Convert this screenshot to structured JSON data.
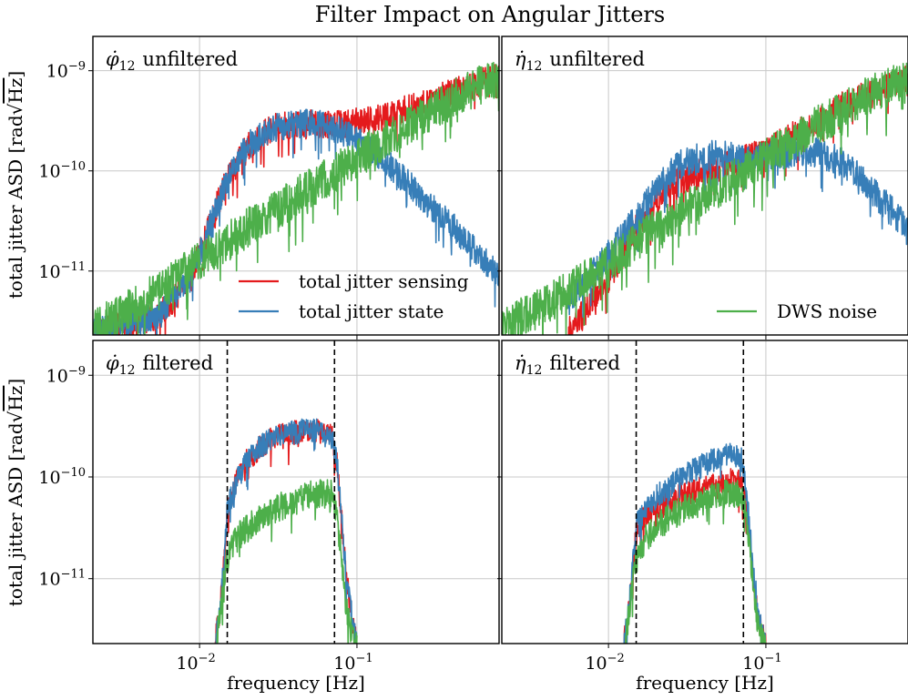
{
  "chart_data": {
    "type": "line",
    "title": "Filter Impact on Angular Jitters",
    "x_scale": "log",
    "y_scale": "log",
    "xlim": [
      0.0021,
      0.8
    ],
    "ylim": [
      2.3e-12,
      2.2e-09
    ],
    "xlabel": "frequency [Hz]",
    "ylabel_text": "total jitter ASD ",
    "ylabel_unit_rad": "rad",
    "ylabel_unit_hz": "Hz",
    "x_ticks": [
      {
        "value": 0.01,
        "base": "10",
        "exp": "−2"
      },
      {
        "value": 0.1,
        "base": "10",
        "exp": "−1"
      }
    ],
    "y_ticks": [
      {
        "value": 1e-09,
        "base": "10",
        "exp": "−9"
      },
      {
        "value": 1e-10,
        "base": "10",
        "exp": "−10"
      },
      {
        "value": 1e-11,
        "base": "10",
        "exp": "−11"
      }
    ],
    "colors": {
      "total_jitter_sensing": "#e41a1c",
      "total_jitter_state": "#377eb8",
      "dws_noise": "#4daf4a"
    },
    "filter_band_hz": [
      0.015,
      0.072
    ],
    "panels": [
      {
        "id": "phi-unfiltered",
        "label_symbol": "φ̇",
        "label_sub": "12",
        "label_text": "unfiltered",
        "filtered": false,
        "legend": {
          "position": "lower-right",
          "entries": [
            "total jitter sensing",
            "total jitter state"
          ]
        },
        "series": [
          {
            "name": "total jitter sensing",
            "key": "total_jitter_sensing",
            "x": [
              0.0021,
              0.003,
              0.004,
              0.005,
              0.006,
              0.007,
              0.008,
              0.01,
              0.012,
              0.015,
              0.02,
              0.025,
              0.03,
              0.04,
              0.05,
              0.06,
              0.07,
              0.09,
              0.12,
              0.15,
              0.2,
              0.3,
              0.4,
              0.5,
              0.6,
              0.8
            ],
            "y": [
              2.5e-12,
              2.9e-12,
              3.3e-12,
              3.5e-12,
              4.2e-12,
              5.5e-12,
              7.5e-12,
              1.5e-11,
              3.5e-11,
              8.5e-11,
              1.8e-10,
              2.4e-10,
              2.8e-10,
              3e-10,
              3.1e-10,
              3e-10,
              3e-10,
              3.1e-10,
              3.4e-10,
              3.6e-10,
              4.2e-10,
              5.3e-10,
              6.2e-10,
              7e-10,
              7.8e-10,
              9e-10
            ],
            "noise": 0.14
          },
          {
            "name": "total jitter state",
            "key": "total_jitter_state",
            "x": [
              0.0021,
              0.003,
              0.004,
              0.005,
              0.006,
              0.007,
              0.008,
              0.01,
              0.012,
              0.015,
              0.02,
              0.025,
              0.03,
              0.04,
              0.05,
              0.06,
              0.07,
              0.09,
              0.12,
              0.15,
              0.2,
              0.3,
              0.4,
              0.5,
              0.6,
              0.8
            ],
            "y": [
              2.5e-12,
              2.9e-12,
              3.3e-12,
              3.5e-12,
              4.2e-12,
              5.5e-12,
              7.5e-12,
              1.5e-11,
              3.5e-11,
              8.5e-11,
              1.8e-10,
              2.4e-10,
              2.8e-10,
              3e-10,
              3.1e-10,
              3e-10,
              2.8e-10,
              2.3e-10,
              1.7e-10,
              1.3e-10,
              8.5e-11,
              4.5e-11,
              3e-11,
              2e-11,
              1.5e-11,
              9e-12
            ],
            "noise": 0.14
          },
          {
            "name": "DWS noise",
            "key": "dws_noise",
            "x": [
              0.0021,
              0.003,
              0.005,
              0.01,
              0.02,
              0.05,
              0.1,
              0.2,
              0.5,
              0.8
            ],
            "y": [
              3e-12,
              3.8e-12,
              6e-12,
              1.3e-11,
              2.8e-11,
              7e-11,
              1.4e-10,
              2.8e-10,
              6.5e-10,
              9e-10
            ],
            "noise": 0.2
          }
        ]
      },
      {
        "id": "eta-unfiltered",
        "label_symbol": "η̇",
        "label_sub": "12",
        "label_text": "unfiltered",
        "filtered": false,
        "legend": {
          "position": "lower-right",
          "entries": [
            "DWS noise"
          ]
        },
        "series": [
          {
            "name": "total jitter sensing",
            "key": "total_jitter_sensing",
            "x": [
              0.0055,
              0.006,
              0.007,
              0.008,
              0.01,
              0.012,
              0.015,
              0.02,
              0.025,
              0.03,
              0.04,
              0.05,
              0.06,
              0.07,
              0.08,
              0.1,
              0.12,
              0.15,
              0.2,
              0.3,
              0.4,
              0.5,
              0.6,
              0.8
            ],
            "y": [
              2.4e-12,
              3e-12,
              4e-12,
              5.5e-12,
              8.5e-12,
              1.5e-11,
              2.8e-11,
              5.2e-11,
              7.2e-11,
              8.5e-11,
              1e-10,
              1.12e-10,
              1.2e-10,
              1.3e-10,
              1.4e-10,
              1.6e-10,
              1.9e-10,
              2.3e-10,
              3e-10,
              4.5e-10,
              5.5e-10,
              6.3e-10,
              7e-10,
              8.5e-10
            ],
            "noise": 0.15
          },
          {
            "name": "total jitter state",
            "key": "total_jitter_state",
            "x": [
              0.0055,
              0.006,
              0.007,
              0.008,
              0.01,
              0.012,
              0.015,
              0.02,
              0.025,
              0.03,
              0.04,
              0.05,
              0.06,
              0.07,
              0.08,
              0.1,
              0.12,
              0.15,
              0.2,
              0.3,
              0.4,
              0.5,
              0.6,
              0.8
            ],
            "y": [
              5e-12,
              6e-12,
              8e-12,
              1e-11,
              1.5e-11,
              2.2e-11,
              3.5e-11,
              6.5e-11,
              1e-10,
              1.25e-10,
              1.45e-10,
              1.5e-10,
              1.45e-10,
              1.4e-10,
              1.35e-10,
              1.4e-10,
              1.5e-10,
              1.6e-10,
              1.6e-10,
              1.3e-10,
              9e-11,
              6e-11,
              4.5e-11,
              2.8e-11
            ],
            "noise": 0.15
          },
          {
            "name": "DWS noise",
            "key": "dws_noise",
            "x": [
              0.0021,
              0.003,
              0.005,
              0.01,
              0.02,
              0.05,
              0.1,
              0.2,
              0.5,
              0.8
            ],
            "y": [
              3e-12,
              3.8e-12,
              6e-12,
              1.3e-11,
              2.8e-11,
              7e-11,
              1.4e-10,
              2.8e-10,
              6.5e-10,
              9e-10
            ],
            "noise": 0.2
          }
        ]
      },
      {
        "id": "phi-filtered",
        "label_symbol": "φ̇",
        "label_sub": "12",
        "label_text": "filtered",
        "filtered": true,
        "legend": null,
        "series": [
          {
            "name": "total jitter sensing",
            "key": "total_jitter_sensing",
            "x": [
              0.0125,
              0.0135,
              0.0145,
              0.015,
              0.017,
              0.02,
              0.025,
              0.03,
              0.04,
              0.05,
              0.06,
              0.07,
              0.075,
              0.08,
              0.085,
              0.09,
              0.095,
              0.1
            ],
            "y": [
              2.3e-12,
              5e-12,
              2e-11,
              5e-11,
              9e-11,
              1.5e-10,
              2.1e-10,
              2.5e-10,
              2.8e-10,
              3e-10,
              2.9e-10,
              2.5e-10,
              1.3e-10,
              4e-11,
              1.2e-11,
              6e-12,
              3.5e-12,
              2.3e-12
            ],
            "noise": 0.12
          },
          {
            "name": "total jitter state",
            "key": "total_jitter_state",
            "x": [
              0.0125,
              0.0135,
              0.0145,
              0.015,
              0.017,
              0.02,
              0.025,
              0.03,
              0.04,
              0.05,
              0.06,
              0.07,
              0.075,
              0.08,
              0.085,
              0.09,
              0.095,
              0.1
            ],
            "y": [
              2.3e-12,
              5e-12,
              2e-11,
              5e-11,
              9e-11,
              1.5e-10,
              2.1e-10,
              2.5e-10,
              2.8e-10,
              3e-10,
              2.9e-10,
              2.5e-10,
              1.3e-10,
              4e-11,
              1.2e-11,
              6e-12,
              3.5e-12,
              2.3e-12
            ],
            "noise": 0.12
          },
          {
            "name": "DWS noise",
            "key": "dws_noise",
            "x": [
              0.0128,
              0.014,
              0.015,
              0.017,
              0.02,
              0.025,
              0.03,
              0.04,
              0.05,
              0.06,
              0.07,
              0.075,
              0.08,
              0.085,
              0.09,
              0.095,
              0.1
            ],
            "y": [
              2.3e-12,
              8e-12,
              1.6e-11,
              2.5e-11,
              3.3e-11,
              4.2e-11,
              5e-11,
              6e-11,
              6.8e-11,
              7.2e-11,
              7e-11,
              4e-11,
              1.5e-11,
              6e-12,
              3.5e-12,
              2.5e-12,
              2.3e-12
            ],
            "noise": 0.14
          }
        ]
      },
      {
        "id": "eta-filtered",
        "label_symbol": "η̇",
        "label_sub": "12",
        "label_text": "filtered",
        "filtered": true,
        "legend": null,
        "series": [
          {
            "name": "total jitter sensing",
            "key": "total_jitter_sensing",
            "x": [
              0.0125,
              0.0135,
              0.0145,
              0.015,
              0.017,
              0.02,
              0.025,
              0.03,
              0.04,
              0.05,
              0.06,
              0.07,
              0.075,
              0.08,
              0.085,
              0.09,
              0.095,
              0.1
            ],
            "y": [
              2.3e-12,
              5e-12,
              1.6e-11,
              3e-11,
              4.2e-11,
              5e-11,
              6e-11,
              7e-11,
              8e-11,
              9e-11,
              9.5e-11,
              9e-11,
              5e-11,
              1.8e-11,
              7e-12,
              4e-12,
              3e-12,
              2.3e-12
            ],
            "noise": 0.12
          },
          {
            "name": "total jitter state",
            "key": "total_jitter_state",
            "x": [
              0.0125,
              0.0135,
              0.0145,
              0.015,
              0.017,
              0.02,
              0.025,
              0.03,
              0.04,
              0.05,
              0.06,
              0.07,
              0.075,
              0.08,
              0.085,
              0.09,
              0.095,
              0.1
            ],
            "y": [
              2.3e-12,
              5.5e-12,
              1.8e-11,
              3.5e-11,
              5e-11,
              6.5e-11,
              8.5e-11,
              1.05e-10,
              1.35e-10,
              1.6e-10,
              1.75e-10,
              1.6e-10,
              8e-11,
              2.5e-11,
              9e-12,
              5e-12,
              3.2e-12,
              2.3e-12
            ],
            "noise": 0.12
          },
          {
            "name": "DWS noise",
            "key": "dws_noise",
            "x": [
              0.0128,
              0.014,
              0.015,
              0.017,
              0.02,
              0.025,
              0.03,
              0.04,
              0.05,
              0.06,
              0.07,
              0.075,
              0.08,
              0.085,
              0.09,
              0.095,
              0.1
            ],
            "y": [
              2.3e-12,
              8e-12,
              1.6e-11,
              2.5e-11,
              3.3e-11,
              4.2e-11,
              5e-11,
              6e-11,
              6.8e-11,
              7.2e-11,
              7e-11,
              4e-11,
              1.5e-11,
              6e-12,
              3.5e-12,
              2.5e-12,
              2.3e-12
            ],
            "noise": 0.14
          }
        ]
      }
    ]
  }
}
